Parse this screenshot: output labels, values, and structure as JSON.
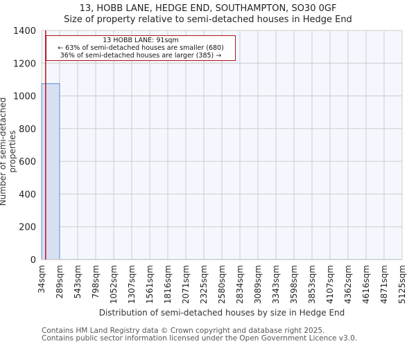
{
  "header": {
    "title": "13, HOBB LANE, HEDGE END, SOUTHAMPTON, SO30 0GF",
    "subtitle": "Size of property relative to semi-detached houses in Hedge End"
  },
  "annotation": {
    "line1": "13 HOBB LANE: 91sqm",
    "line2": "← 63% of semi-detached houses are smaller (680)",
    "line3": "36% of semi-detached houses are larger (385) →"
  },
  "footer": {
    "line1": "Contains HM Land Registry data © Crown copyright and database right 2025.",
    "line2": "Contains public sector information licensed under the Open Government Licence v3.0."
  },
  "colors": {
    "bar_fill": "#d6e0f2",
    "bar_edge": "#5b8cc8",
    "plot_bg": "#f4f7fd",
    "grid": "#cccccc",
    "marker_line": "#c0101a"
  },
  "chart_data": {
    "type": "bar",
    "title": "13, HOBB LANE, HEDGE END, SOUTHAMPTON, SO30 0GF",
    "subtitle": "Size of property relative to semi-detached houses in Hedge End",
    "xlabel": "Distribution of semi-detached houses by size in Hedge End",
    "ylabel": "Number of semi-detached properties",
    "categories": [
      "34sqm",
      "289sqm",
      "543sqm",
      "798sqm",
      "1052sqm",
      "1307sqm",
      "1561sqm",
      "1816sqm",
      "2071sqm",
      "2325sqm",
      "2580sqm",
      "2834sqm",
      "3089sqm",
      "3343sqm",
      "3598sqm",
      "3853sqm",
      "4107sqm",
      "4362sqm",
      "4616sqm",
      "4871sqm",
      "5125sqm"
    ],
    "bin_edges": [
      34,
      289,
      543,
      798,
      1052,
      1307,
      1561,
      1816,
      2071,
      2325,
      2580,
      2834,
      3089,
      3343,
      3598,
      3853,
      4107,
      4362,
      4616,
      4871,
      5125
    ],
    "values": [
      1075,
      0,
      0,
      0,
      0,
      0,
      0,
      0,
      0,
      0,
      0,
      0,
      0,
      0,
      0,
      0,
      0,
      0,
      0,
      0
    ],
    "ylim": [
      0,
      1400
    ],
    "yticks": [
      0,
      200,
      400,
      600,
      800,
      1000,
      1200,
      1400
    ],
    "grid": true,
    "marker": {
      "x": 91,
      "label": "13 HOBB LANE: 91sqm"
    }
  }
}
